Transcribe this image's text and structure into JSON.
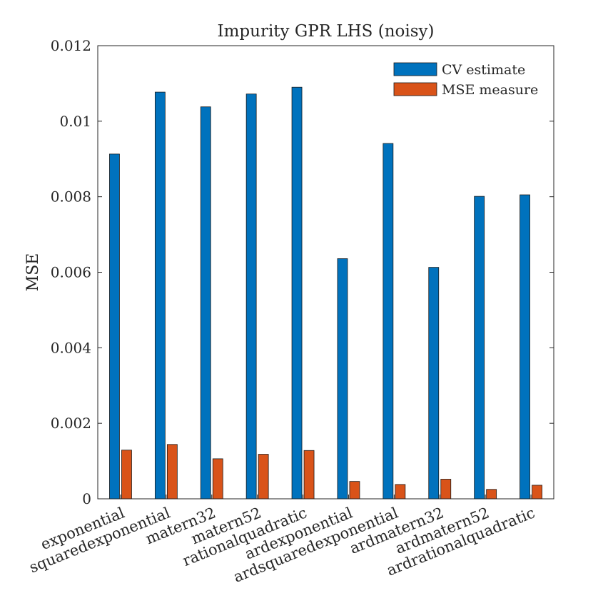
{
  "chart_data": {
    "type": "bar",
    "title": "Impurity GPR LHS (noisy)",
    "xlabel": "",
    "ylabel": "MSE",
    "ylim": [
      0,
      0.012
    ],
    "yticks": [
      "0",
      "0.002",
      "0.004",
      "0.006",
      "0.008",
      "0.01",
      "0.012"
    ],
    "ytick_values": [
      0,
      0.002,
      0.004,
      0.006,
      0.008,
      0.01,
      0.012
    ],
    "categories": [
      "exponential",
      "squaredexponential",
      "matern32",
      "matern52",
      "rationalquadratic",
      "ardexponential",
      "ardsquaredexponential",
      "ardmatern32",
      "ardmatern52",
      "ardrationalquadratic"
    ],
    "series": [
      {
        "name": "CV estimate",
        "color": "#0072BD",
        "values": [
          0.00913,
          0.01077,
          0.01038,
          0.01072,
          0.0109,
          0.00636,
          0.00941,
          0.00613,
          0.00801,
          0.00805
        ]
      },
      {
        "name": "MSE measure",
        "color": "#D95319",
        "values": [
          0.00129,
          0.00144,
          0.00106,
          0.00118,
          0.00128,
          0.00046,
          0.00038,
          0.00052,
          0.00025,
          0.00036
        ]
      }
    ],
    "legend": "top-right",
    "grid": false
  }
}
